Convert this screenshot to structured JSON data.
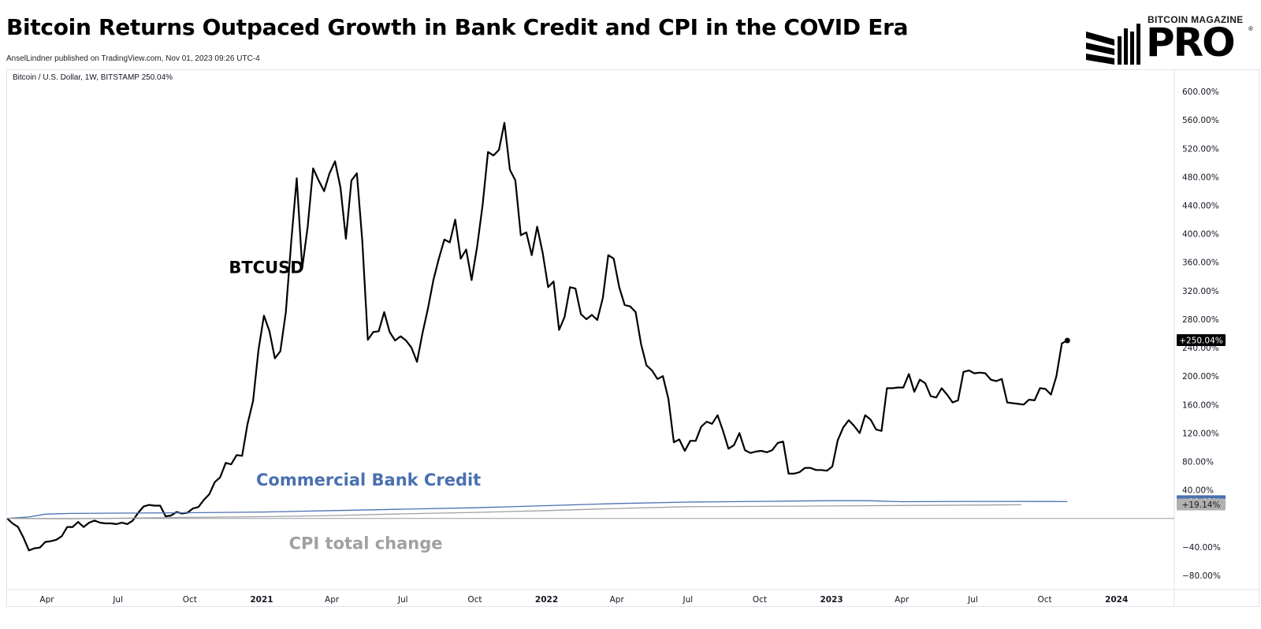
{
  "header": {
    "title": "Bitcoin Returns Outpaced Growth in Bank Credit and CPI in the COVID Era",
    "publisher": "AnselLindner published on TradingView.com, Nov 01, 2023 09:26 UTC-4"
  },
  "logo": {
    "top_text": "BITCOIN MAGAZINE",
    "main_text": "PRO",
    "registered_mark": "®"
  },
  "chart_data": {
    "type": "line",
    "symbol_info": "Bitcoin / U.S. Dollar, 1W, BITSTAMP  250.04%",
    "ylim": [
      -100,
      630
    ],
    "y_ticks": [
      600,
      560,
      520,
      480,
      440,
      400,
      360,
      320,
      280,
      240,
      200,
      160,
      120,
      80,
      40,
      -40,
      -80
    ],
    "y_tick_labels": [
      "600.00%",
      "560.00%",
      "520.00%",
      "480.00%",
      "440.00%",
      "400.00%",
      "360.00%",
      "320.00%",
      "280.00%",
      "240.00%",
      "200.00%",
      "160.00%",
      "120.00%",
      "80.00%",
      "40.00%",
      "−40.00%",
      "−80.00%"
    ],
    "x_ticks": [
      {
        "label": "Apr",
        "date": "2020-04-01",
        "bold": false
      },
      {
        "label": "Jul",
        "date": "2020-07-01",
        "bold": false
      },
      {
        "label": "Oct",
        "date": "2020-10-01",
        "bold": false
      },
      {
        "label": "2021",
        "date": "2021-01-01",
        "bold": true
      },
      {
        "label": "Apr",
        "date": "2021-04-01",
        "bold": false
      },
      {
        "label": "Jul",
        "date": "2021-07-01",
        "bold": false
      },
      {
        "label": "Oct",
        "date": "2021-10-01",
        "bold": false
      },
      {
        "label": "2022",
        "date": "2022-01-01",
        "bold": true
      },
      {
        "label": "Apr",
        "date": "2022-04-01",
        "bold": false
      },
      {
        "label": "Jul",
        "date": "2022-07-01",
        "bold": false
      },
      {
        "label": "Oct",
        "date": "2022-10-01",
        "bold": false
      },
      {
        "label": "2023",
        "date": "2023-01-01",
        "bold": true
      },
      {
        "label": "Apr",
        "date": "2023-04-01",
        "bold": false
      },
      {
        "label": "Jul",
        "date": "2023-07-01",
        "bold": false
      },
      {
        "label": "Oct",
        "date": "2023-10-01",
        "bold": false
      },
      {
        "label": "2024",
        "date": "2024-01-01",
        "bold": true
      }
    ],
    "x_range": [
      "2020-02-10",
      "2024-03-15"
    ],
    "annotations": [
      {
        "text": "BTCUSD",
        "date": "2020-11-20",
        "y": 345,
        "color": "#000000"
      },
      {
        "text": "Commercial Bank Credit",
        "date": "2020-12-25",
        "y": 46,
        "color": "#4a70b0"
      },
      {
        "text": "CPI total change",
        "date": "2021-02-05",
        "y": -43,
        "color": "#a0a0a0"
      }
    ],
    "series": [
      {
        "id": "btc",
        "color": "#000000",
        "last_label": "+250.04%",
        "label_bg": "#000000",
        "points": [
          [
            "2020-02-10",
            0
          ],
          [
            "2020-02-17",
            -7
          ],
          [
            "2020-02-24",
            -12
          ],
          [
            "2020-03-02",
            -27
          ],
          [
            "2020-03-09",
            -45
          ],
          [
            "2020-03-16",
            -42
          ],
          [
            "2020-03-23",
            -41
          ],
          [
            "2020-03-30",
            -33
          ],
          [
            "2020-04-06",
            -32
          ],
          [
            "2020-04-13",
            -30
          ],
          [
            "2020-04-20",
            -25
          ],
          [
            "2020-04-27",
            -12
          ],
          [
            "2020-05-04",
            -12
          ],
          [
            "2020-05-11",
            -5
          ],
          [
            "2020-05-18",
            -12
          ],
          [
            "2020-05-25",
            -6
          ],
          [
            "2020-06-01",
            -3
          ],
          [
            "2020-06-08",
            -6
          ],
          [
            "2020-06-15",
            -7
          ],
          [
            "2020-06-22",
            -7
          ],
          [
            "2020-06-29",
            -8
          ],
          [
            "2020-07-06",
            -6
          ],
          [
            "2020-07-13",
            -8
          ],
          [
            "2020-07-20",
            -3
          ],
          [
            "2020-07-27",
            8
          ],
          [
            "2020-08-03",
            17
          ],
          [
            "2020-08-10",
            19
          ],
          [
            "2020-08-17",
            18
          ],
          [
            "2020-08-24",
            18
          ],
          [
            "2020-08-31",
            3
          ],
          [
            "2020-09-07",
            4
          ],
          [
            "2020-09-14",
            9
          ],
          [
            "2020-09-21",
            7
          ],
          [
            "2020-09-28",
            8
          ],
          [
            "2020-10-05",
            14
          ],
          [
            "2020-10-12",
            16
          ],
          [
            "2020-10-19",
            26
          ],
          [
            "2020-10-26",
            34
          ],
          [
            "2020-11-02",
            51
          ],
          [
            "2020-11-09",
            58
          ],
          [
            "2020-11-16",
            78
          ],
          [
            "2020-11-23",
            76
          ],
          [
            "2020-11-30",
            89
          ],
          [
            "2020-12-07",
            88
          ],
          [
            "2020-12-14",
            133
          ],
          [
            "2020-12-21",
            165
          ],
          [
            "2020-12-28",
            237
          ],
          [
            "2021-01-04",
            285
          ],
          [
            "2021-01-11",
            263
          ],
          [
            "2021-01-18",
            225
          ],
          [
            "2021-01-25",
            235
          ],
          [
            "2021-02-01",
            290
          ],
          [
            "2021-02-08",
            390
          ],
          [
            "2021-02-15",
            478
          ],
          [
            "2021-02-22",
            352
          ],
          [
            "2021-03-01",
            410
          ],
          [
            "2021-03-08",
            492
          ],
          [
            "2021-03-15",
            475
          ],
          [
            "2021-03-22",
            460
          ],
          [
            "2021-03-29",
            485
          ],
          [
            "2021-04-05",
            502
          ],
          [
            "2021-04-12",
            465
          ],
          [
            "2021-04-19",
            393
          ],
          [
            "2021-04-26",
            475
          ],
          [
            "2021-05-03",
            485
          ],
          [
            "2021-05-10",
            390
          ],
          [
            "2021-05-17",
            251
          ],
          [
            "2021-05-24",
            262
          ],
          [
            "2021-05-31",
            263
          ],
          [
            "2021-06-07",
            290
          ],
          [
            "2021-06-14",
            262
          ],
          [
            "2021-06-21",
            250
          ],
          [
            "2021-06-28",
            256
          ],
          [
            "2021-07-05",
            250
          ],
          [
            "2021-07-12",
            240
          ],
          [
            "2021-07-19",
            220
          ],
          [
            "2021-07-26",
            260
          ],
          [
            "2021-08-02",
            295
          ],
          [
            "2021-08-09",
            335
          ],
          [
            "2021-08-16",
            365
          ],
          [
            "2021-08-23",
            392
          ],
          [
            "2021-08-30",
            388
          ],
          [
            "2021-09-06",
            420
          ],
          [
            "2021-09-13",
            365
          ],
          [
            "2021-09-20",
            378
          ],
          [
            "2021-09-27",
            335
          ],
          [
            "2021-10-04",
            382
          ],
          [
            "2021-10-11",
            440
          ],
          [
            "2021-10-18",
            515
          ],
          [
            "2021-10-25",
            510
          ],
          [
            "2021-11-01",
            518
          ],
          [
            "2021-11-08",
            556
          ],
          [
            "2021-11-15",
            490
          ],
          [
            "2021-11-22",
            475
          ],
          [
            "2021-11-29",
            398
          ],
          [
            "2021-12-06",
            402
          ],
          [
            "2021-12-13",
            370
          ],
          [
            "2021-12-20",
            410
          ],
          [
            "2021-12-27",
            373
          ],
          [
            "2022-01-03",
            325
          ],
          [
            "2022-01-10",
            333
          ],
          [
            "2022-01-17",
            265
          ],
          [
            "2022-01-24",
            283
          ],
          [
            "2022-01-31",
            325
          ],
          [
            "2022-02-07",
            323
          ],
          [
            "2022-02-14",
            287
          ],
          [
            "2022-02-21",
            280
          ],
          [
            "2022-02-28",
            286
          ],
          [
            "2022-03-07",
            279
          ],
          [
            "2022-03-14",
            310
          ],
          [
            "2022-03-21",
            370
          ],
          [
            "2022-03-28",
            365
          ],
          [
            "2022-04-04",
            325
          ],
          [
            "2022-04-11",
            300
          ],
          [
            "2022-04-18",
            298
          ],
          [
            "2022-04-25",
            290
          ],
          [
            "2022-05-02",
            245
          ],
          [
            "2022-05-09",
            215
          ],
          [
            "2022-05-16",
            208
          ],
          [
            "2022-05-23",
            196
          ],
          [
            "2022-05-30",
            200
          ],
          [
            "2022-06-06",
            168
          ],
          [
            "2022-06-13",
            107
          ],
          [
            "2022-06-20",
            111
          ],
          [
            "2022-06-27",
            95
          ],
          [
            "2022-07-04",
            109
          ],
          [
            "2022-07-11",
            109
          ],
          [
            "2022-07-18",
            129
          ],
          [
            "2022-07-25",
            136
          ],
          [
            "2022-08-01",
            133
          ],
          [
            "2022-08-08",
            145
          ],
          [
            "2022-08-15",
            123
          ],
          [
            "2022-08-22",
            98
          ],
          [
            "2022-08-29",
            103
          ],
          [
            "2022-09-05",
            120
          ],
          [
            "2022-09-12",
            96
          ],
          [
            "2022-09-19",
            92
          ],
          [
            "2022-09-26",
            94
          ],
          [
            "2022-10-03",
            95
          ],
          [
            "2022-10-10",
            93
          ],
          [
            "2022-10-17",
            96
          ],
          [
            "2022-10-24",
            106
          ],
          [
            "2022-10-31",
            108
          ],
          [
            "2022-11-07",
            63
          ],
          [
            "2022-11-14",
            63
          ],
          [
            "2022-11-21",
            65
          ],
          [
            "2022-11-28",
            71
          ],
          [
            "2022-12-05",
            71
          ],
          [
            "2022-12-12",
            68
          ],
          [
            "2022-12-19",
            68
          ],
          [
            "2022-12-26",
            67
          ],
          [
            "2023-01-02",
            73
          ],
          [
            "2023-01-09",
            110
          ],
          [
            "2023-01-16",
            128
          ],
          [
            "2023-01-23",
            138
          ],
          [
            "2023-01-30",
            130
          ],
          [
            "2023-02-06",
            120
          ],
          [
            "2023-02-13",
            145
          ],
          [
            "2023-02-20",
            139
          ],
          [
            "2023-02-27",
            125
          ],
          [
            "2023-03-06",
            123
          ],
          [
            "2023-03-13",
            183
          ],
          [
            "2023-03-20",
            183
          ],
          [
            "2023-03-27",
            184
          ],
          [
            "2023-04-03",
            184
          ],
          [
            "2023-04-10",
            203
          ],
          [
            "2023-04-17",
            178
          ],
          [
            "2023-04-24",
            195
          ],
          [
            "2023-05-01",
            190
          ],
          [
            "2023-05-08",
            172
          ],
          [
            "2023-05-15",
            170
          ],
          [
            "2023-05-22",
            183
          ],
          [
            "2023-05-29",
            174
          ],
          [
            "2023-06-05",
            163
          ],
          [
            "2023-06-12",
            166
          ],
          [
            "2023-06-19",
            206
          ],
          [
            "2023-06-26",
            208
          ],
          [
            "2023-07-03",
            204
          ],
          [
            "2023-07-10",
            205
          ],
          [
            "2023-07-17",
            204
          ],
          [
            "2023-07-24",
            195
          ],
          [
            "2023-07-31",
            193
          ],
          [
            "2023-08-07",
            196
          ],
          [
            "2023-08-14",
            163
          ],
          [
            "2023-08-21",
            162
          ],
          [
            "2023-08-28",
            161
          ],
          [
            "2023-09-04",
            160
          ],
          [
            "2023-09-11",
            167
          ],
          [
            "2023-09-18",
            166
          ],
          [
            "2023-09-25",
            183
          ],
          [
            "2023-10-02",
            182
          ],
          [
            "2023-10-09",
            174
          ],
          [
            "2023-10-16",
            200
          ],
          [
            "2023-10-23",
            246
          ],
          [
            "2023-10-30",
            250.04
          ]
        ]
      },
      {
        "id": "bank_credit",
        "color": "#4a70b0",
        "last_label": "+23.62%",
        "label_bg": "#4a70b0",
        "points": [
          [
            "2020-02-10",
            0
          ],
          [
            "2020-03-09",
            2
          ],
          [
            "2020-03-30",
            6
          ],
          [
            "2020-05-01",
            7
          ],
          [
            "2020-07-01",
            7.5
          ],
          [
            "2020-10-01",
            8
          ],
          [
            "2021-01-01",
            9
          ],
          [
            "2021-04-01",
            11
          ],
          [
            "2021-07-01",
            13
          ],
          [
            "2021-10-01",
            15
          ],
          [
            "2022-01-01",
            18
          ],
          [
            "2022-04-01",
            21
          ],
          [
            "2022-07-01",
            23
          ],
          [
            "2022-10-01",
            24
          ],
          [
            "2023-01-01",
            25
          ],
          [
            "2023-02-15",
            25
          ],
          [
            "2023-04-01",
            23.5
          ],
          [
            "2023-07-01",
            24
          ],
          [
            "2023-10-01",
            23.8
          ],
          [
            "2023-10-30",
            23.62
          ]
        ]
      },
      {
        "id": "cpi",
        "color": "#a0a0a0",
        "last_label": "+19.14%",
        "label_bg": "#b0b0b0",
        "points": [
          [
            "2020-02-10",
            0
          ],
          [
            "2020-05-01",
            -0.5
          ],
          [
            "2020-10-01",
            1.5
          ],
          [
            "2021-01-01",
            2.5
          ],
          [
            "2021-04-01",
            4
          ],
          [
            "2021-07-01",
            6.5
          ],
          [
            "2021-10-01",
            8.5
          ],
          [
            "2022-01-01",
            11
          ],
          [
            "2022-04-01",
            14
          ],
          [
            "2022-07-01",
            16.5
          ],
          [
            "2022-10-01",
            17
          ],
          [
            "2023-01-01",
            17.5
          ],
          [
            "2023-04-01",
            18.2
          ],
          [
            "2023-07-01",
            18.8
          ],
          [
            "2023-09-01",
            19.14
          ]
        ]
      }
    ],
    "grid": false,
    "zero_line": true
  }
}
